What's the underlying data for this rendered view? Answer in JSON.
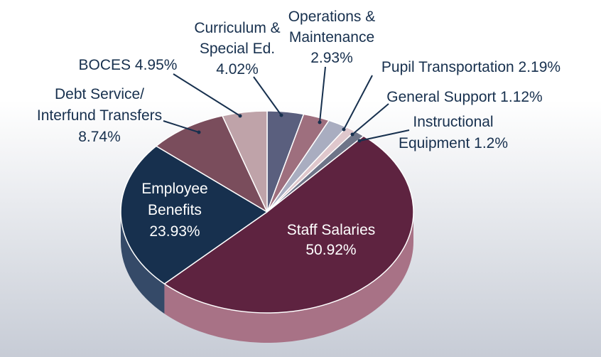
{
  "chart_data": {
    "type": "pie",
    "style": "3d",
    "slices": [
      {
        "label": "Staff Salaries",
        "value": 50.92,
        "value_text": "50.92%",
        "color": "#5e2340",
        "side_color": "#a87286"
      },
      {
        "label": "Employee Benefits",
        "value": 23.93,
        "value_text": "23.93%",
        "color": "#17304e",
        "side_color": "#354a68"
      },
      {
        "label": "Debt Service/ Interfund Transfers",
        "value": 8.74,
        "value_text": "8.74%",
        "color": "#7a4d5c",
        "side_color": "#8f6a76"
      },
      {
        "label": "BOCES",
        "value": 4.95,
        "value_text": "4.95%",
        "color": "#bfa3a9",
        "side_color": "#a58d93"
      },
      {
        "label": "Curriculum & Special Ed.",
        "value": 4.02,
        "value_text": "4.02%",
        "color": "#5a5f7e",
        "side_color": "#4a4f6a"
      },
      {
        "label": "Operations & Maintenance",
        "value": 2.93,
        "value_text": "2.93%",
        "color": "#9e6f7e",
        "side_color": "#86606c"
      },
      {
        "label": "Pupil Transportation",
        "value": 2.19,
        "value_text": "2.19%",
        "color": "#a9adc0",
        "side_color": "#9094a6"
      },
      {
        "label": "General Support",
        "value": 1.12,
        "value_text": "1.12%",
        "color": "#dfc7cc",
        "side_color": "#c7aeb4"
      },
      {
        "label": "Instructional Equipment",
        "value": 1.2,
        "value_text": "1.2%",
        "color": "#6e7488",
        "side_color": "#5c6274"
      }
    ],
    "background_top": "#ffffff",
    "background_bottom": "#c7ccd6",
    "text_dark": "#17304e",
    "text_light": "#ffffff"
  }
}
